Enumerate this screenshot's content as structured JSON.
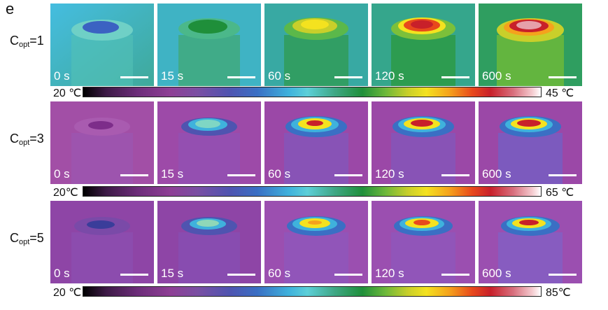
{
  "panel_label": "e",
  "rows": [
    {
      "label_main": "C",
      "label_sub": "opt",
      "label_value": "=1",
      "frames": [
        "0 s",
        "15 s",
        "60 s",
        "120 s",
        "600 s"
      ],
      "colorbar": {
        "min_label": "20 ℃",
        "max_label": "45 ℃"
      }
    },
    {
      "label_main": "C",
      "label_sub": "opt",
      "label_value": "=3",
      "frames": [
        "0 s",
        "15 s",
        "60 s",
        "120 s",
        "600 s"
      ],
      "colorbar": {
        "min_label": "20℃",
        "max_label": "65 ℃"
      }
    },
    {
      "label_main": "C",
      "label_sub": "opt",
      "label_value": "=5",
      "frames": [
        "0 s",
        "15 s",
        "60 s",
        "120 s",
        "600 s"
      ],
      "colorbar": {
        "min_label": "20 ℃",
        "max_label": "85℃"
      }
    }
  ],
  "colors": {
    "row1_background": "#3fb6dc",
    "row2_background": "#9a4aa6",
    "row3_background": "#8e45a6",
    "hot": "#c8202a",
    "warm": "#f4e21f"
  }
}
